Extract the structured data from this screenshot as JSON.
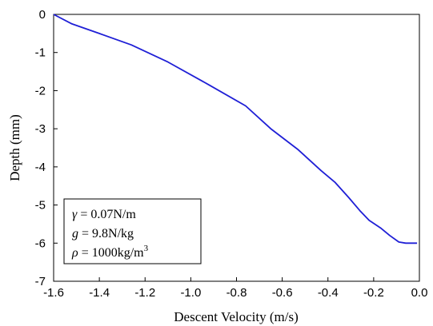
{
  "chart_data": {
    "type": "line",
    "title": "",
    "xlabel": "Descent Velocity (m/s)",
    "ylabel": "Depth (mm)",
    "xlim": [
      -1.6,
      0.0
    ],
    "ylim": [
      -7,
      0
    ],
    "x_ticks": [
      "-1.6",
      "-1.4",
      "-1.2",
      "-1.0",
      "-0.8",
      "-0.6",
      "-0.4",
      "-0.2",
      "0.0"
    ],
    "y_ticks": [
      "0",
      "-1",
      "-2",
      "-3",
      "-4",
      "-5",
      "-6",
      "-7"
    ],
    "grid": false,
    "series": [
      {
        "color": "#1f1fd6",
        "x": [
          -1.6,
          -1.52,
          -1.4,
          -1.26,
          -1.1,
          -0.92,
          -0.76,
          -0.65,
          -0.53,
          -0.43,
          -0.37,
          -0.31,
          -0.26,
          -0.22,
          -0.17,
          -0.13,
          -0.09,
          -0.06,
          -0.01
        ],
        "y": [
          0.0,
          -0.25,
          -0.5,
          -0.8,
          -1.25,
          -1.85,
          -2.4,
          -3.0,
          -3.55,
          -4.1,
          -4.4,
          -4.8,
          -5.15,
          -5.4,
          -5.6,
          -5.8,
          -5.97,
          -6.0,
          -6.0
        ]
      }
    ],
    "annotation": {
      "lines": [
        {
          "symbol": "γ",
          "rest": " = 0.07N/m",
          "sup": ""
        },
        {
          "symbol": "g",
          "rest": " = 9.8N/kg",
          "sup": ""
        },
        {
          "symbol": "ρ",
          "rest": " = 1000kg/m",
          "sup": "3"
        }
      ]
    }
  }
}
